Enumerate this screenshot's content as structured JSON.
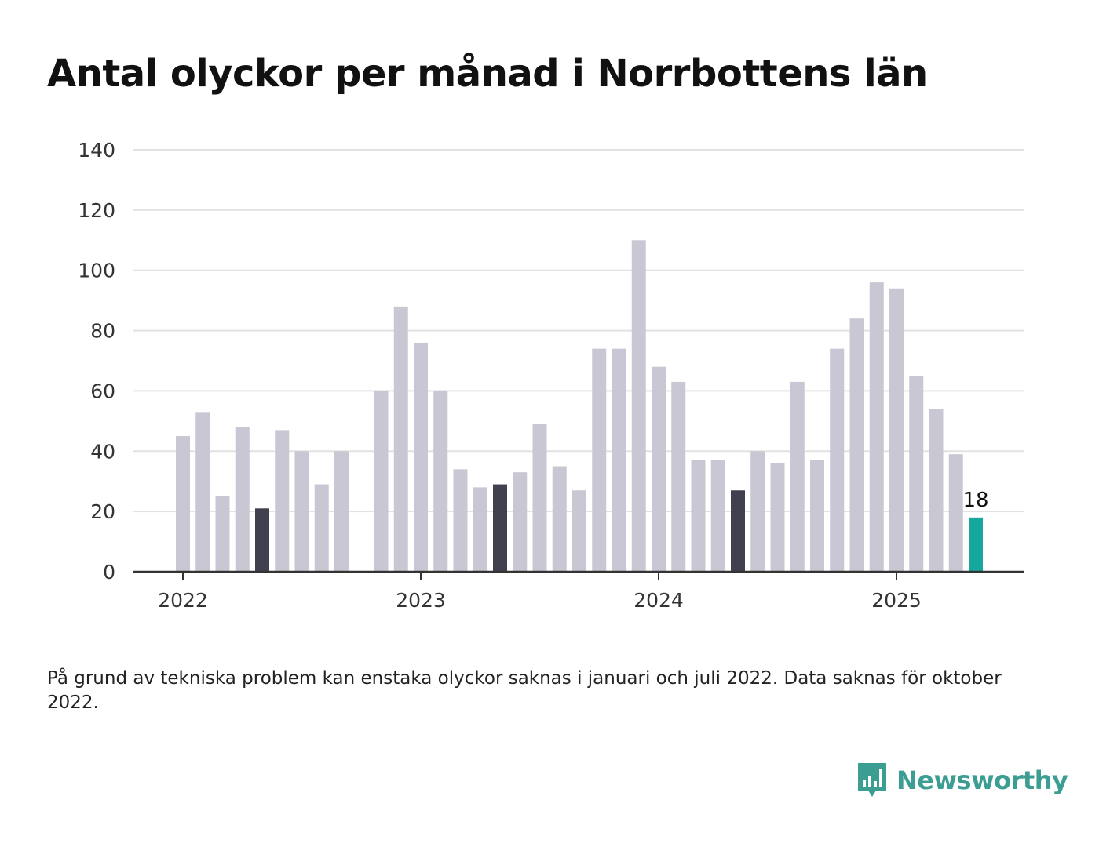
{
  "title": "Antal olyckor per månad i Norrbottens län",
  "footnote": "På grund av tekniska problem kan enstaka olyckor saknas i januari och juli 2022. Data saknas för oktober 2022.",
  "brand": "Newsworthy",
  "colors": {
    "default": "#c9c7d3",
    "highlight": "#41404e",
    "latest": "#17a79c",
    "grid": "#e2e2e2",
    "axis": "#333333",
    "brand": "#3c9e93"
  },
  "chart_data": {
    "type": "bar",
    "ylim": [
      0,
      140
    ],
    "yticks": [
      0,
      20,
      40,
      60,
      80,
      100,
      120,
      140
    ],
    "xtick_labels": [
      {
        "label": "2022",
        "index": 0
      },
      {
        "label": "2023",
        "index": 12
      },
      {
        "label": "2024",
        "index": 24
      },
      {
        "label": "2025",
        "index": 36
      }
    ],
    "grid": true,
    "categories": [
      "2022-01",
      "2022-02",
      "2022-03",
      "2022-04",
      "2022-05",
      "2022-06",
      "2022-07",
      "2022-08",
      "2022-09",
      "2022-10",
      "2022-11",
      "2022-12",
      "2023-01",
      "2023-02",
      "2023-03",
      "2023-04",
      "2023-05",
      "2023-06",
      "2023-07",
      "2023-08",
      "2023-09",
      "2023-10",
      "2023-11",
      "2023-12",
      "2024-01",
      "2024-02",
      "2024-03",
      "2024-04",
      "2024-05",
      "2024-06",
      "2024-07",
      "2024-08",
      "2024-09",
      "2024-10",
      "2024-11",
      "2024-12",
      "2025-01",
      "2025-02",
      "2025-03",
      "2025-04",
      "2025-05"
    ],
    "values": [
      45,
      53,
      25,
      48,
      21,
      47,
      40,
      29,
      40,
      null,
      60,
      88,
      76,
      60,
      34,
      28,
      29,
      33,
      49,
      35,
      27,
      74,
      74,
      110,
      68,
      63,
      37,
      37,
      27,
      40,
      36,
      63,
      37,
      74,
      84,
      96,
      94,
      65,
      54,
      39,
      18
    ],
    "highlight_months": [
      "2022-05",
      "2023-05",
      "2024-05"
    ],
    "latest_month": "2025-05",
    "data_labels": [
      {
        "category": "2025-05",
        "text": "18"
      }
    ]
  }
}
